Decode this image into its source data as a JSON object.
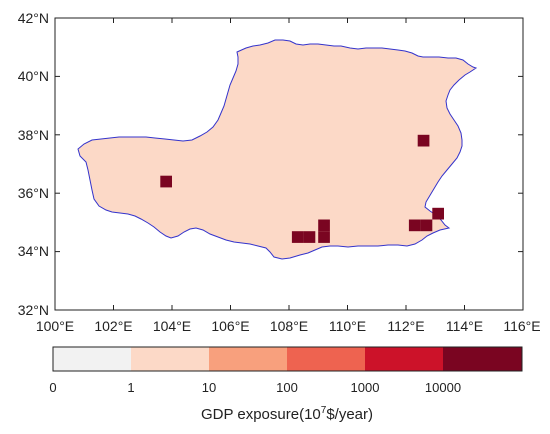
{
  "map": {
    "y_ticks": [
      "42°N",
      "40°N",
      "38°N",
      "36°N",
      "34°N",
      "32°N"
    ],
    "x_ticks": [
      "100°E",
      "102°E",
      "104°E",
      "106°E",
      "108°E",
      "110°E",
      "112°E",
      "114°E",
      "116°E"
    ],
    "lon_range": [
      100,
      116
    ],
    "lat_range": [
      32,
      42
    ],
    "region_fill": "#fcd9c7",
    "border_color": "#3333cc"
  },
  "chart_data": {
    "type": "heatmap",
    "cells_lonlat_class": [
      {
        "lon": 103.8,
        "lat": 36.4,
        "class": 5
      },
      {
        "lon": 108.3,
        "lat": 34.5,
        "class": 5
      },
      {
        "lon": 108.7,
        "lat": 34.5,
        "class": 5
      },
      {
        "lon": 109.2,
        "lat": 34.5,
        "class": 5
      },
      {
        "lon": 109.2,
        "lat": 34.9,
        "class": 5
      },
      {
        "lon": 112.3,
        "lat": 34.9,
        "class": 5
      },
      {
        "lon": 112.7,
        "lat": 34.9,
        "class": 5
      },
      {
        "lon": 113.1,
        "lat": 35.3,
        "class": 5
      },
      {
        "lon": 112.6,
        "lat": 37.8,
        "class": 5
      }
    ]
  },
  "colorbar": {
    "colors": [
      "#f2f2f2",
      "#fcd9c7",
      "#f8a07d",
      "#ee6350",
      "#cc1229",
      "#7a0521"
    ],
    "labels": [
      "0",
      "1",
      "10",
      "100",
      "1000",
      "10000"
    ],
    "title_main": "GDP exposure(10",
    "title_sup": "7",
    "title_tail": "$/year)"
  }
}
